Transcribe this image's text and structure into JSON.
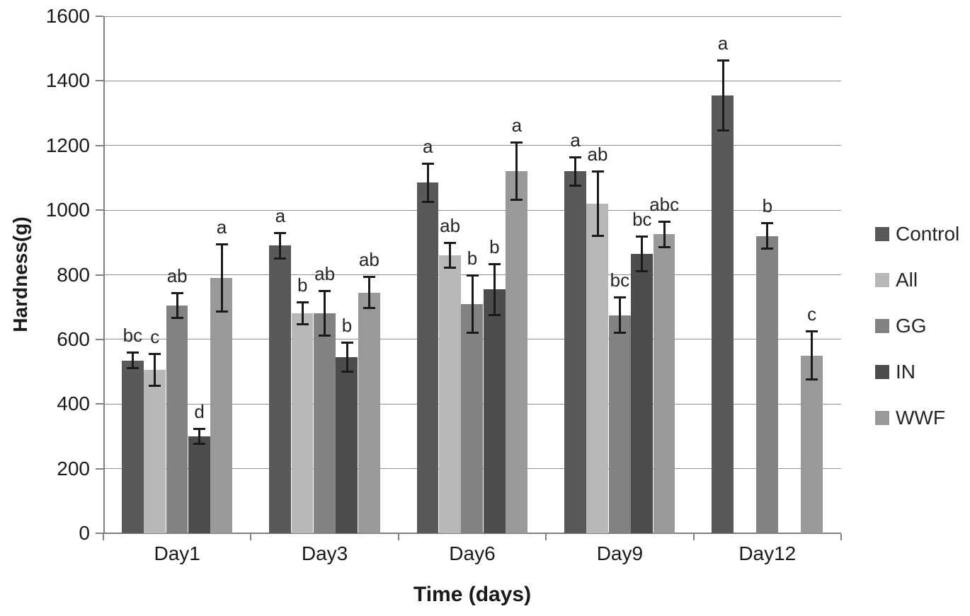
{
  "chart_data": {
    "type": "bar",
    "title": "",
    "xlabel": "Time (days)",
    "ylabel": "Hardness(g)",
    "ylim": [
      0,
      1600
    ],
    "ytick_step": 200,
    "yticks": [
      0,
      200,
      400,
      600,
      800,
      1000,
      1200,
      1400,
      1600
    ],
    "grid": true,
    "legend_position": "right",
    "categories": [
      "Day1",
      "Day3",
      "Day6",
      "Day9",
      "Day12"
    ],
    "series": [
      {
        "name": "Control",
        "color": "#595959",
        "values": [
          535,
          890,
          1085,
          1120,
          1355
        ],
        "errors": [
          25,
          40,
          60,
          45,
          110
        ],
        "letters": [
          "bc",
          "a",
          "a",
          "a",
          "a"
        ]
      },
      {
        "name": "All",
        "color": "#b8b8b8",
        "values": [
          505,
          680,
          860,
          1020,
          null
        ],
        "errors": [
          50,
          35,
          40,
          100,
          null
        ],
        "letters": [
          "c",
          "b",
          "ab",
          "ab",
          null
        ]
      },
      {
        "name": "GG",
        "color": "#828282",
        "values": [
          705,
          680,
          710,
          675,
          920
        ],
        "errors": [
          40,
          70,
          90,
          55,
          40
        ],
        "letters": [
          "ab",
          "ab",
          "b",
          "bc",
          "b"
        ]
      },
      {
        "name": "IN",
        "color": "#4c4c4c",
        "values": [
          300,
          545,
          755,
          865,
          null
        ],
        "errors": [
          25,
          45,
          80,
          55,
          null
        ],
        "letters": [
          "d",
          "b",
          "b",
          "bc",
          null
        ]
      },
      {
        "name": "WWF",
        "color": "#999999",
        "values": [
          790,
          745,
          1120,
          925,
          550
        ],
        "errors": [
          105,
          50,
          90,
          40,
          75
        ],
        "letters": [
          "a",
          "ab",
          "a",
          "abc",
          "c"
        ]
      }
    ]
  },
  "legend": {
    "items": [
      "Control",
      "All",
      "GG",
      "IN",
      "WWF"
    ]
  },
  "colors": {
    "gridline": "#8f8f8f",
    "axis": "#7f7f7f",
    "error_bar": "#1a1a1a",
    "text": "#1a1a1a"
  }
}
